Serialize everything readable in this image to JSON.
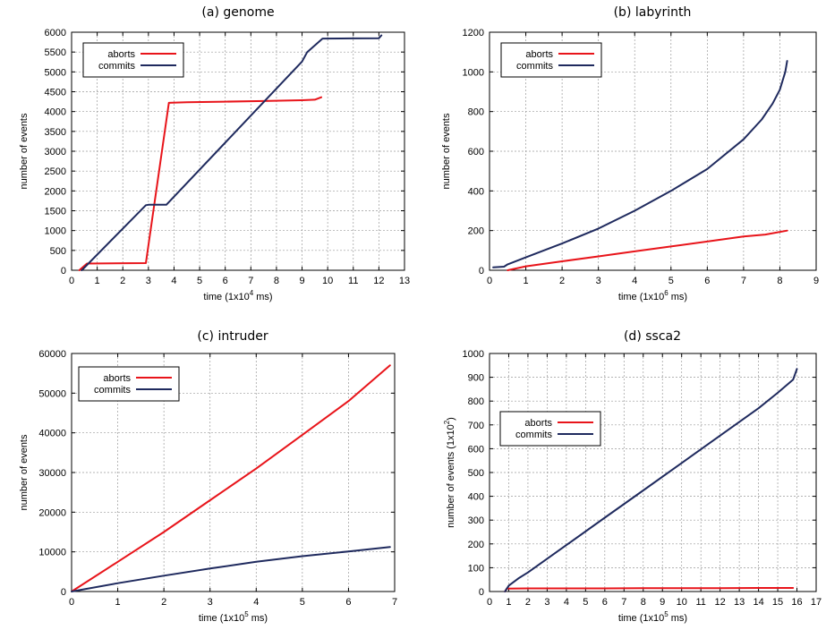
{
  "chart_data": [
    {
      "type": "line",
      "title": "(a) genome",
      "xlabel": "time (1x10",
      "xlabel_sup": "4",
      "xlabel_tail": " ms)",
      "ylabel": "number of events",
      "xlim": [
        0,
        13
      ],
      "ylim": [
        0,
        6000
      ],
      "xticks": [
        0,
        1,
        2,
        3,
        4,
        5,
        6,
        7,
        8,
        9,
        10,
        11,
        12,
        13
      ],
      "yticks": [
        0,
        500,
        1000,
        1500,
        2000,
        2500,
        3000,
        3500,
        4000,
        4500,
        5000,
        5500,
        6000
      ],
      "legend": "top-left",
      "grid": true,
      "series": [
        {
          "name": "aborts",
          "color": "#e8141a",
          "x": [
            0.3,
            0.6,
            2.9,
            3.8,
            4.5,
            6.0,
            7.5,
            9.0,
            9.5,
            9.75
          ],
          "y": [
            0,
            170,
            180,
            4220,
            4235,
            4250,
            4265,
            4285,
            4300,
            4360
          ]
        },
        {
          "name": "commits",
          "color": "#1f2a5e",
          "x": [
            0.4,
            2.9,
            3.0,
            3.7,
            9.0,
            9.2,
            9.8,
            11.0,
            12.0,
            12.1
          ],
          "y": [
            0,
            1640,
            1650,
            1650,
            5260,
            5500,
            5840,
            5845,
            5850,
            5920
          ]
        }
      ]
    },
    {
      "type": "line",
      "title": "(b) labyrinth",
      "xlabel": "time (1x10",
      "xlabel_sup": "6",
      "xlabel_tail": " ms)",
      "ylabel": "number of events",
      "xlim": [
        0,
        9
      ],
      "ylim": [
        0,
        1200
      ],
      "xticks": [
        0,
        1,
        2,
        3,
        4,
        5,
        6,
        7,
        8,
        9
      ],
      "yticks": [
        0,
        200,
        400,
        600,
        800,
        1000,
        1200
      ],
      "legend": "top-left",
      "grid": true,
      "series": [
        {
          "name": "aborts",
          "color": "#e8141a",
          "x": [
            0.5,
            1,
            2,
            3,
            4,
            5,
            6,
            7,
            7.6,
            8.2
          ],
          "y": [
            0,
            20,
            45,
            70,
            95,
            120,
            145,
            170,
            180,
            200
          ]
        },
        {
          "name": "commits",
          "color": "#1f2a5e",
          "x": [
            0.1,
            0.4,
            0.5,
            1,
            2,
            3,
            4,
            5,
            6,
            7,
            7.5,
            7.8,
            8.0,
            8.15,
            8.2
          ],
          "y": [
            15,
            18,
            30,
            65,
            135,
            210,
            300,
            400,
            510,
            660,
            760,
            840,
            910,
            1000,
            1055
          ]
        }
      ]
    },
    {
      "type": "line",
      "title": "(c) intruder",
      "xlabel": "time (1x10",
      "xlabel_sup": "5",
      "xlabel_tail": " ms)",
      "ylabel": "number of events",
      "xlim": [
        0,
        7
      ],
      "ylim": [
        0,
        60000
      ],
      "xticks": [
        0,
        1,
        2,
        3,
        4,
        5,
        6,
        7
      ],
      "yticks": [
        0,
        10000,
        20000,
        30000,
        40000,
        50000,
        60000
      ],
      "legend": "top-left",
      "grid": true,
      "series": [
        {
          "name": "aborts",
          "color": "#e8141a",
          "x": [
            0,
            1,
            2,
            3,
            4,
            5,
            6,
            6.9
          ],
          "y": [
            0,
            7500,
            15000,
            23000,
            31000,
            39500,
            48000,
            57000
          ]
        },
        {
          "name": "commits",
          "color": "#1f2a5e",
          "x": [
            0,
            1,
            2,
            3,
            4,
            5,
            6,
            6.9
          ],
          "y": [
            0,
            2100,
            4000,
            5800,
            7500,
            8900,
            10100,
            11200
          ]
        }
      ]
    },
    {
      "type": "line",
      "title": "(d) ssca2",
      "xlabel": "time (1x10",
      "xlabel_sup": "5",
      "xlabel_tail": " ms)",
      "ylabel": "number of events (1x10",
      "ylabel_sup": "2",
      "ylabel_tail": ")",
      "xlim": [
        0,
        17
      ],
      "ylim": [
        0,
        1000
      ],
      "xticks": [
        0,
        1,
        2,
        3,
        4,
        5,
        6,
        7,
        8,
        9,
        10,
        11,
        12,
        13,
        14,
        15,
        16,
        17
      ],
      "yticks": [
        0,
        100,
        200,
        300,
        400,
        500,
        600,
        700,
        800,
        900,
        1000
      ],
      "legend": "top-left",
      "grid": true,
      "series": [
        {
          "name": "aborts",
          "color": "#e8141a",
          "x": [
            0.8,
            0.9,
            2,
            4,
            6,
            8,
            10,
            12,
            14,
            15.8
          ],
          "y": [
            0,
            12,
            13,
            13,
            13,
            14,
            14,
            14,
            15,
            15
          ]
        },
        {
          "name": "commits",
          "color": "#1f2a5e",
          "x": [
            0.8,
            1.0,
            1.5,
            2.0,
            4,
            6,
            8,
            10,
            12,
            14,
            15,
            15.8,
            16.0
          ],
          "y": [
            0,
            25,
            55,
            80,
            195,
            310,
            425,
            540,
            655,
            770,
            835,
            890,
            935
          ]
        }
      ]
    }
  ]
}
